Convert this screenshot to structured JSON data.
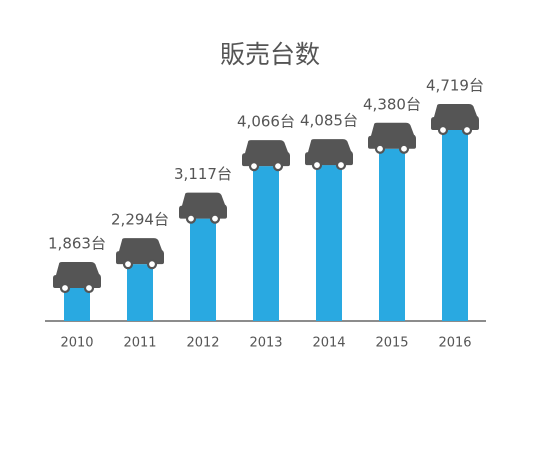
{
  "chart_data": {
    "type": "bar",
    "title": "販売台数",
    "categories": [
      "2010",
      "2011",
      "2012",
      "2013",
      "2014",
      "2015",
      "2016"
    ],
    "values": [
      1863,
      2294,
      3117,
      4066,
      4085,
      4380,
      4719
    ],
    "value_labels": [
      "1,863台",
      "2,294台",
      "3,117台",
      "4,066台",
      "4,085台",
      "4,380台",
      "4,719台"
    ],
    "color": "#29a9e1"
  }
}
